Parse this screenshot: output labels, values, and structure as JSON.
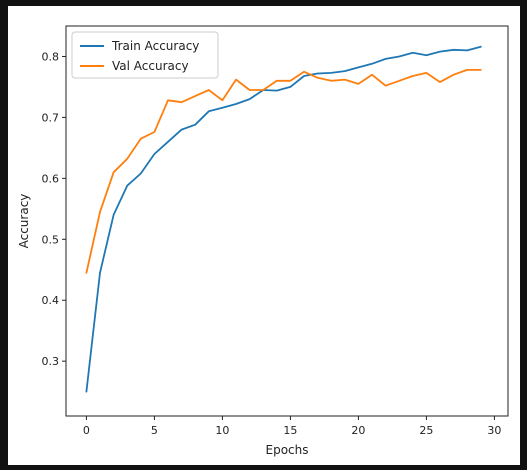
{
  "chart_data": {
    "type": "line",
    "title": "",
    "xlabel": "Epochs",
    "ylabel": "Accuracy",
    "xlim": [
      -1.5,
      31
    ],
    "ylim": [
      0.21,
      0.85
    ],
    "xticks": [
      0,
      5,
      10,
      15,
      20,
      25,
      30
    ],
    "yticks": [
      0.3,
      0.4,
      0.5,
      0.6,
      0.7,
      0.8
    ],
    "grid": false,
    "legend": "top-left",
    "x": [
      0,
      1,
      2,
      3,
      4,
      5,
      6,
      7,
      8,
      9,
      10,
      11,
      12,
      13,
      14,
      15,
      16,
      17,
      18,
      19,
      20,
      21,
      22,
      23,
      24,
      25,
      26,
      27,
      28,
      29
    ],
    "series": [
      {
        "name": "Train Accuracy",
        "color": "#1f77b4",
        "values": [
          0.25,
          0.445,
          0.54,
          0.588,
          0.608,
          0.64,
          0.66,
          0.68,
          0.688,
          0.71,
          0.716,
          0.722,
          0.73,
          0.745,
          0.744,
          0.75,
          0.768,
          0.772,
          0.773,
          0.776,
          0.782,
          0.788,
          0.796,
          0.8,
          0.806,
          0.802,
          0.808,
          0.811,
          0.81,
          0.816
        ]
      },
      {
        "name": "Val Accuracy",
        "color": "#ff7f0e",
        "values": [
          0.445,
          0.545,
          0.61,
          0.632,
          0.665,
          0.676,
          0.728,
          0.725,
          0.735,
          0.745,
          0.728,
          0.762,
          0.745,
          0.745,
          0.76,
          0.76,
          0.775,
          0.765,
          0.76,
          0.762,
          0.755,
          0.77,
          0.752,
          0.76,
          0.768,
          0.773,
          0.758,
          0.77,
          0.778,
          0.778
        ]
      }
    ]
  }
}
